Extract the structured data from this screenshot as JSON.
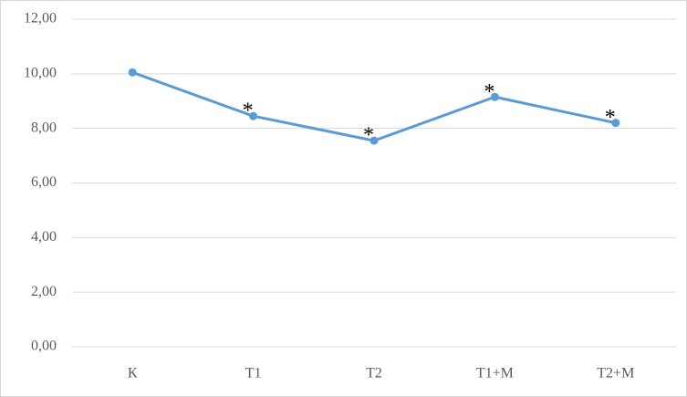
{
  "chart_data": {
    "type": "line",
    "categories": [
      "К",
      "T1",
      "T2",
      "T1+M",
      "T2+M"
    ],
    "series": [
      {
        "color": "#5b9bd5",
        "values": [
          10.05,
          8.45,
          7.55,
          9.15,
          8.2
        ]
      }
    ],
    "ylim": [
      0,
      12
    ],
    "yticks": [
      {
        "value": 0,
        "label": "0,00"
      },
      {
        "value": 2,
        "label": "2,00"
      },
      {
        "value": 4,
        "label": "4,00"
      },
      {
        "value": 6,
        "label": "6,00"
      },
      {
        "value": 8,
        "label": "8,00"
      },
      {
        "value": 10,
        "label": "10,00"
      },
      {
        "value": 12,
        "label": "12,00"
      }
    ],
    "grid": true,
    "annotations": [
      {
        "category": "T1",
        "text": "*"
      },
      {
        "category": "T2",
        "text": "*"
      },
      {
        "category": "T1+M",
        "text": "*"
      },
      {
        "category": "T2+M",
        "text": "*"
      }
    ]
  }
}
